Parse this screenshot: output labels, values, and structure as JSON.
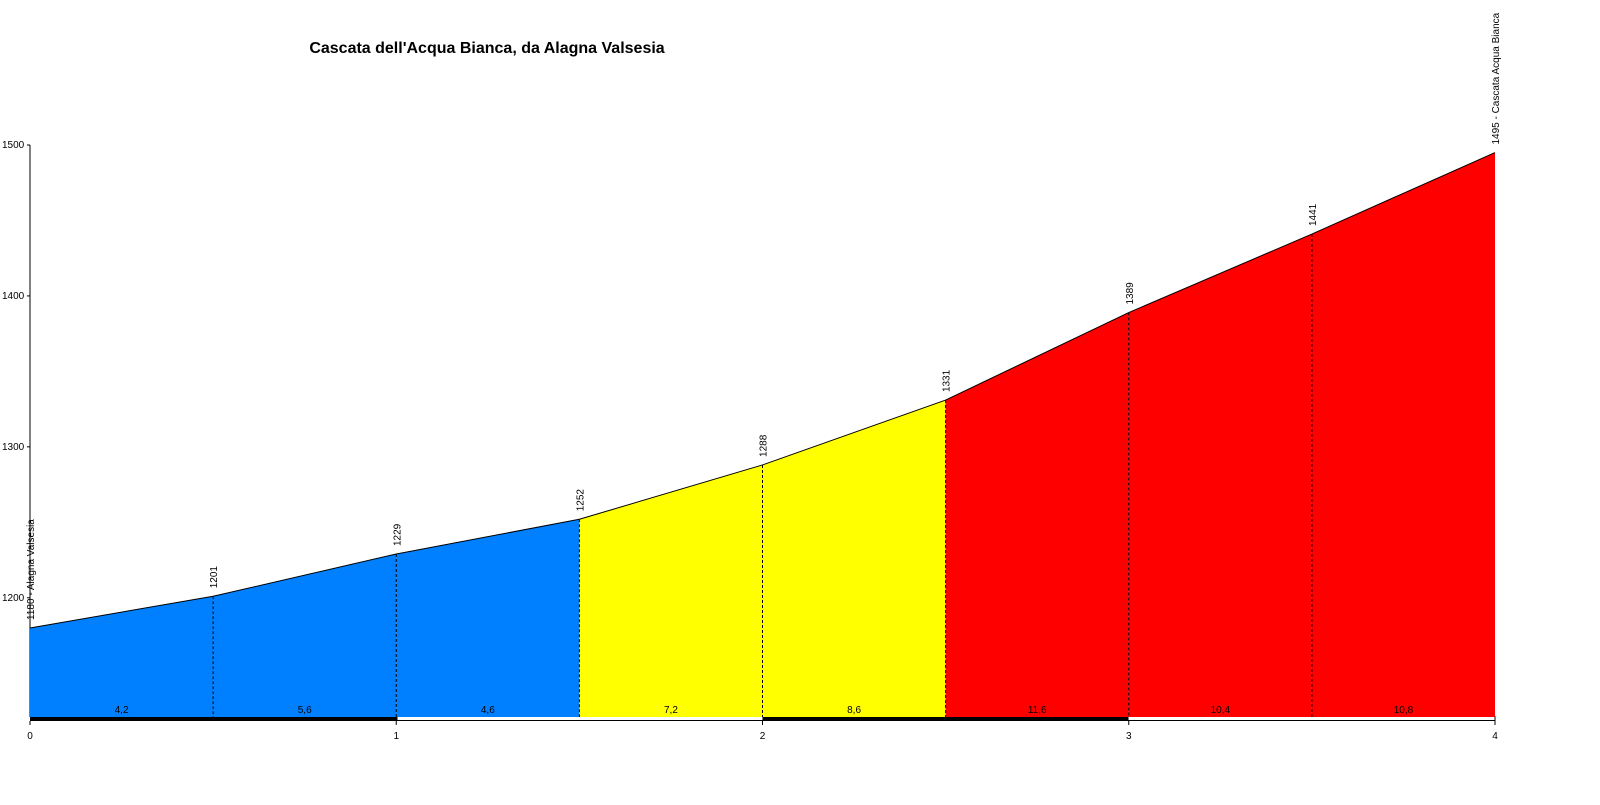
{
  "chart_data": {
    "type": "area",
    "title": "Cascata dell'Acqua Bianca, da Alagna Valsesia",
    "x": [
      0,
      0.5,
      1,
      1.5,
      2,
      2.5,
      3,
      3.5,
      4
    ],
    "values": [
      1180,
      1201,
      1229,
      1252,
      1288,
      1331,
      1389,
      1441,
      1495
    ],
    "value_labels": [
      "1180 - Alagna Valsesia",
      "1201",
      "1229",
      "1252",
      "1288",
      "1331",
      "1389",
      "1441",
      "1495 - Cascata Acqua Bianca"
    ],
    "gradients": {
      "values": [
        4.2,
        5.6,
        4.6,
        7.2,
        8.6,
        11.6,
        10.4,
        10.8
      ],
      "value_labels": [
        "4,2",
        "5,6",
        "4,6",
        "7,2",
        "8,6",
        "11,6",
        "10,4",
        "10,8"
      ],
      "colors": [
        "#0080ff",
        "#0080ff",
        "#0080ff",
        "#ffff00",
        "#ffff00",
        "#ff0000",
        "#ff0000",
        "#ff0000"
      ]
    },
    "xlim": [
      0,
      4
    ],
    "xticks": [
      0,
      1,
      2,
      3,
      4
    ],
    "ylim": [
      1121,
      1500
    ],
    "yticks": [
      1200,
      1300,
      1400,
      1500
    ]
  }
}
